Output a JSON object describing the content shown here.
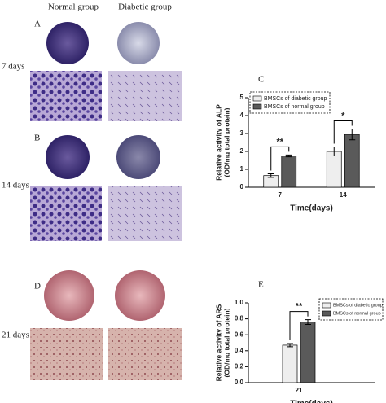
{
  "column_headers": [
    "Normal group",
    "Diabetic group"
  ],
  "panels": [
    {
      "label": "A",
      "time": "7 days"
    },
    {
      "label": "B",
      "time": "14 days"
    },
    {
      "label": "D",
      "time": "21 days"
    }
  ],
  "chart_data": [
    {
      "type": "bar",
      "panel": "C",
      "ylabel": [
        "Relative activity of ALP",
        "(OD/mg total protein)"
      ],
      "xlabel": "Time(days)",
      "categories": [
        "7",
        "14"
      ],
      "series": [
        {
          "name": "BMSCs of diabetic group",
          "color": "#eeeeee",
          "values": [
            0.65,
            2.0
          ],
          "errors": [
            0.1,
            0.25
          ]
        },
        {
          "name": "BMSCs of normal group",
          "color": "#5a5a5a",
          "values": [
            1.75,
            2.95
          ],
          "errors": [
            0.05,
            0.3
          ]
        }
      ],
      "annotations": [
        "**",
        "*"
      ],
      "ylim": [
        0,
        5
      ],
      "yticks": [
        0,
        1,
        2,
        3,
        4,
        5
      ]
    },
    {
      "type": "bar",
      "panel": "E",
      "ylabel": [
        "Relative activity of ARS",
        "(OD/mg total protein)"
      ],
      "xlabel": "Time(days)",
      "categories": [
        "21"
      ],
      "series": [
        {
          "name": "BMSCs of diabetic group",
          "color": "#eeeeee",
          "values": [
            0.47
          ],
          "errors": [
            0.02
          ]
        },
        {
          "name": "BMSCs of normal group",
          "color": "#5a5a5a",
          "values": [
            0.76
          ],
          "errors": [
            0.03
          ]
        }
      ],
      "annotations": [
        "**"
      ],
      "ylim": [
        0,
        1
      ],
      "yticks": [
        {
          "value": 0,
          "label": "0.0"
        },
        0.2,
        0.4,
        0.6,
        0.8,
        {
          "value": 1,
          "label": "1.0"
        }
      ]
    }
  ]
}
